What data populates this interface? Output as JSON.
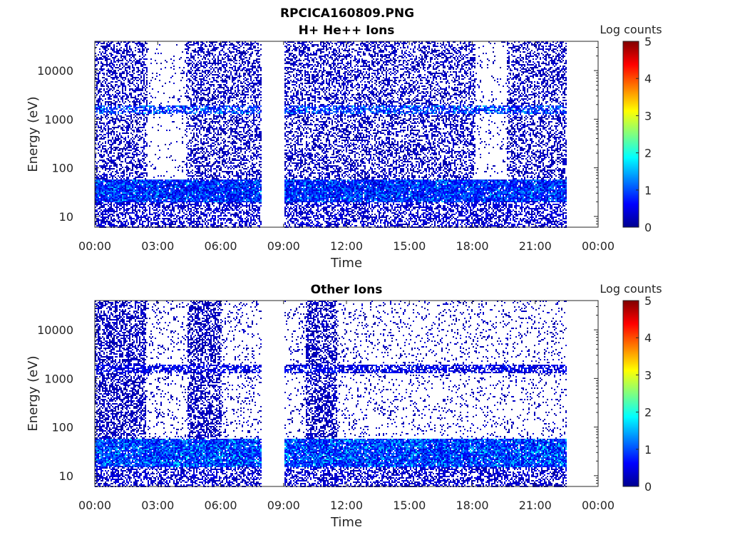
{
  "figure": {
    "title": "RPCICA160809.PNG"
  },
  "chart_data": [
    {
      "type": "heatmap",
      "title": "H+ He++ Ions",
      "xlabel": "Time",
      "ylabel": "Energy (eV)",
      "xlim": [
        "00:00",
        "24:00"
      ],
      "ylim": [
        6,
        40000
      ],
      "y_scale": "log",
      "x_ticks": [
        "00:00",
        "03:00",
        "06:00",
        "09:00",
        "12:00",
        "15:00",
        "18:00",
        "21:00",
        "00:00"
      ],
      "y_ticks": [
        "10",
        "100",
        "1000",
        "10000"
      ],
      "colorbar": {
        "label": "Log counts",
        "range": [
          0,
          5
        ],
        "ticks": [
          "0",
          "1",
          "2",
          "3",
          "4",
          "5"
        ],
        "colormap": "jet"
      },
      "data_span_hours": [
        0.0,
        22.5
      ],
      "gaps_hours": [
        [
          7.9,
          9.0
        ]
      ],
      "sparse_high_energy_hours": [
        [
          2.45,
          4.3
        ],
        [
          18.1,
          19.6
        ]
      ],
      "features": [
        {
          "description": "ion band",
          "energy_eV": [
            20,
            60
          ],
          "level": 1.4
        },
        {
          "description": "upper band",
          "energy_eV": [
            1300,
            2000
          ],
          "level": 1.6
        }
      ],
      "grid": false,
      "legend": "none"
    },
    {
      "type": "heatmap",
      "title": "Other Ions",
      "xlabel": "Time",
      "ylabel": "Energy (eV)",
      "xlim": [
        "00:00",
        "24:00"
      ],
      "ylim": [
        6,
        40000
      ],
      "y_scale": "log",
      "x_ticks": [
        "00:00",
        "03:00",
        "06:00",
        "09:00",
        "12:00",
        "15:00",
        "18:00",
        "21:00",
        "00:00"
      ],
      "y_ticks": [
        "10",
        "100",
        "1000",
        "10000"
      ],
      "colorbar": {
        "label": "Log counts",
        "range": [
          0,
          5
        ],
        "ticks": [
          "0",
          "1",
          "2",
          "3",
          "4",
          "5"
        ],
        "colormap": "jet"
      },
      "data_span_hours": [
        0.0,
        22.5
      ],
      "gaps_hours": [
        [
          7.9,
          9.0
        ]
      ],
      "dense_high_energy_hours": [
        [
          0.0,
          2.4
        ],
        [
          4.4,
          6.0
        ],
        [
          10.0,
          11.5
        ]
      ],
      "features": [
        {
          "description": "ion band",
          "energy_eV": [
            15,
            60
          ],
          "level": 1.6
        },
        {
          "description": "upper band",
          "energy_eV": [
            1300,
            2000
          ],
          "level": 0.9
        }
      ],
      "grid": false,
      "legend": "none"
    }
  ]
}
